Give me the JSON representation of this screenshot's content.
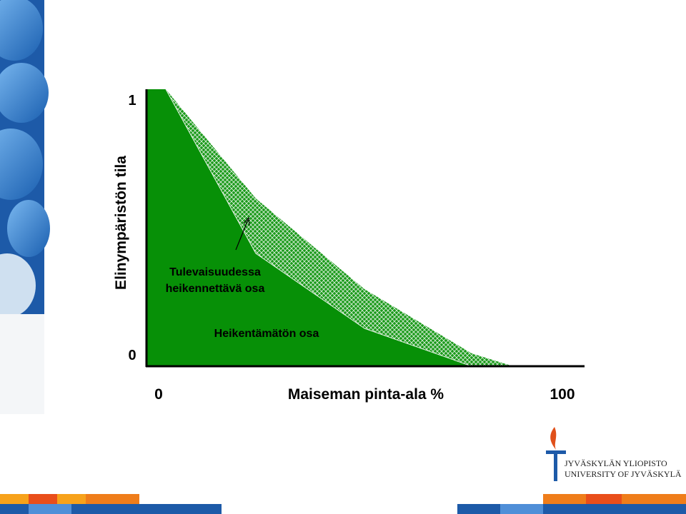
{
  "y_axis": {
    "label": "Elinympäristön tila",
    "top": "1",
    "bottom": "0"
  },
  "x_axis": {
    "label": "Maiseman pinta-ala %",
    "start": "0",
    "end": "100"
  },
  "areas": {
    "hatched": [
      "Tulevaisuudessa",
      "heikennettävä osa"
    ],
    "solid": "Heikentämätön osa"
  },
  "logo": [
    "JYVÄSKYLÄN YLIOPISTO",
    "UNIVERSITY OF JYVÄSKYLÄ"
  ]
}
